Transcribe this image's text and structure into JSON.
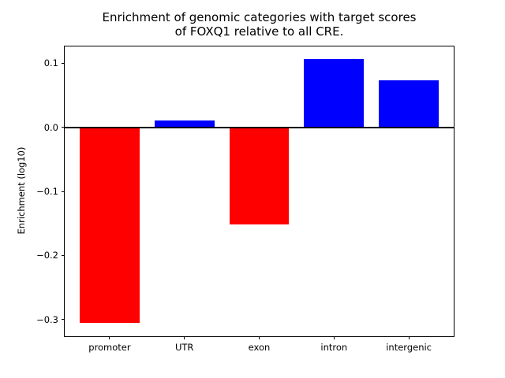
{
  "title": {
    "line1": "Enrichment of genomic categories with target scores",
    "line2": "of FOXQ1 relative to all CRE."
  },
  "chart_data": {
    "type": "bar",
    "title": "Enrichment of genomic categories with target scores\nof FOXQ1 relative to all CRE.",
    "title_lines": [
      "Enrichment of genomic categories with target scores",
      "of FOXQ1 relative to all CRE."
    ],
    "categories": [
      "promoter",
      "UTR",
      "exon",
      "intron",
      "intergenic"
    ],
    "values": [
      -0.305,
      0.01,
      -0.151,
      0.106,
      0.073
    ],
    "bar_colors": [
      "#ff0000",
      "#0000ff",
      "#ff0000",
      "#0000ff",
      "#0000ff"
    ],
    "xlabel": "",
    "ylabel": "Enrichment (log10)",
    "ylim": [
      -0.326,
      0.126
    ],
    "xlim": [
      -0.6,
      4.6
    ],
    "bar_width_frac": 0.8,
    "yticks": [
      0.1,
      0.0,
      -0.1,
      -0.2,
      -0.3
    ],
    "ytick_labels": [
      "0.1",
      "0.0",
      "−0.1",
      "−0.2",
      "−0.3"
    ],
    "grid": false,
    "legend": "none",
    "zero_line": true
  },
  "colors": {
    "positive_bar": "#0000ff",
    "negative_bar": "#ff0000",
    "axis": "#000000",
    "background": "#ffffff"
  }
}
